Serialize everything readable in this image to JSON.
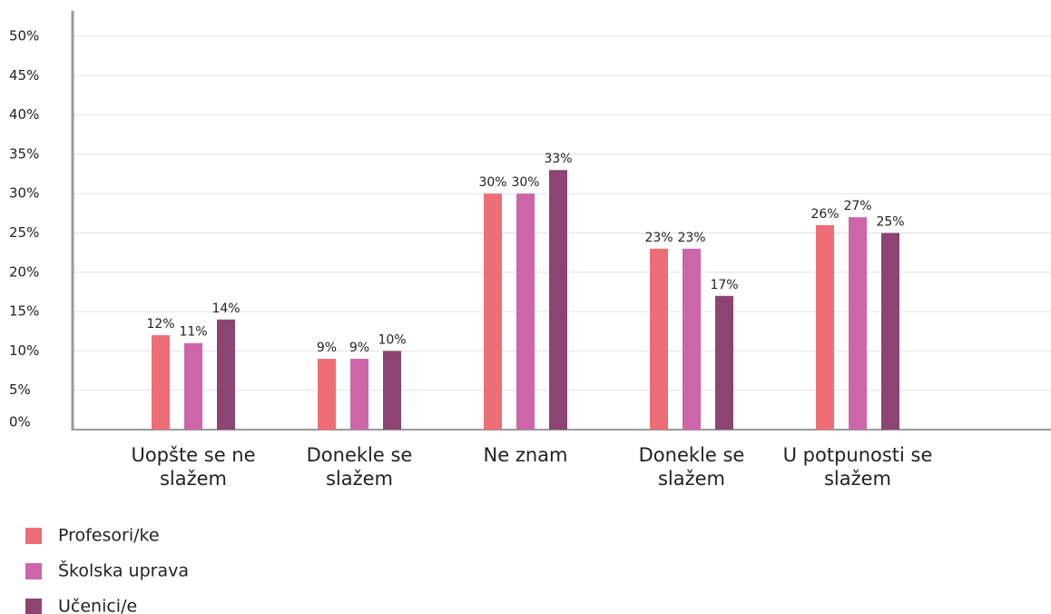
{
  "chart_data": {
    "type": "bar",
    "categories": [
      "Uopšte se ne slažem",
      "Donekle se slažem",
      "Ne znam",
      "Donekle se slažem",
      "U potpunosti se slažem"
    ],
    "series": [
      {
        "name": "Profesori/ke",
        "color": "#ee6e77",
        "values": [
          12,
          9,
          30,
          23,
          26
        ],
        "value_labels": [
          "12%",
          "9%",
          "30%",
          "23%",
          "26%"
        ]
      },
      {
        "name": "Školska uprava",
        "color": "#cc66a8",
        "values": [
          11,
          9,
          30,
          23,
          27
        ],
        "value_labels": [
          "11%",
          "9%",
          "30%",
          "23%",
          "27%"
        ]
      },
      {
        "name": "Učenici/e",
        "color": "#8c4472",
        "values": [
          14,
          10,
          33,
          17,
          25
        ],
        "value_labels": [
          "14%",
          "10%",
          "33%",
          "17%",
          "25%"
        ]
      }
    ],
    "ylim": [
      0,
      53
    ],
    "yticks": [
      {
        "value": 0,
        "label": "0%"
      },
      {
        "value": 5,
        "label": "5%"
      },
      {
        "value": 10,
        "label": "10%"
      },
      {
        "value": 15,
        "label": "15%"
      },
      {
        "value": 20,
        "label": "20%"
      },
      {
        "value": 25,
        "label": "25%"
      },
      {
        "value": 30,
        "label": "30%"
      },
      {
        "value": 35,
        "label": "35%"
      },
      {
        "value": 40,
        "label": "40%"
      },
      {
        "value": 45,
        "label": "45%"
      },
      {
        "value": 50,
        "label": "50%"
      }
    ],
    "grid": true
  }
}
